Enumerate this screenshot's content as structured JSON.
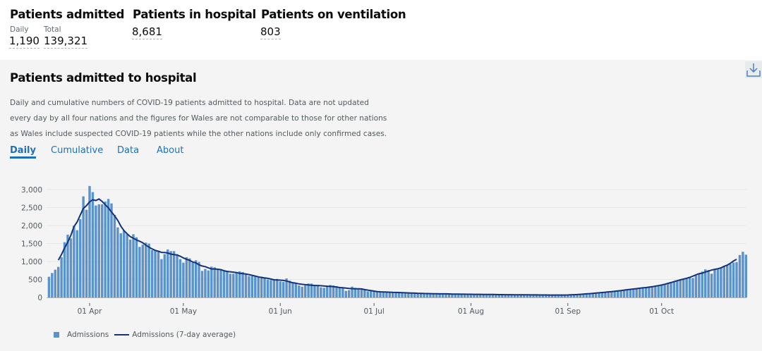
{
  "headline": {
    "admitted": {
      "title": "Patients admitted",
      "daily_label": "Daily",
      "daily_value": "1,190",
      "total_label": "Total",
      "total_value": "139,321"
    },
    "in_hospital": {
      "title": "Patients in hospital",
      "value": "8,681"
    },
    "ventilation": {
      "title": "Patients on ventilation",
      "value": "803"
    }
  },
  "card": {
    "title": "Patients admitted to hospital",
    "description": "Daily and cumulative numbers of COVID-19 patients admitted to hospital. Data are not updated every day by all four nations and the figures for Wales are not comparable to those for other nations as Wales include suspected COVID-19 patients while the other nations include only confirmed cases.",
    "tabs": [
      "Daily",
      "Cumulative",
      "Data",
      "About"
    ],
    "active_tab": "Daily",
    "download_icon": "download-icon"
  },
  "chart_data": {
    "type": "bar",
    "ylim": [
      0,
      3000
    ],
    "yticks": [
      "0",
      "500",
      "1,000",
      "1,500",
      "2,000",
      "2,500",
      "3,000"
    ],
    "xticks": [
      "01 Apr",
      "01 May",
      "01 Jun",
      "01 Jul",
      "01 Aug",
      "01 Sep",
      "01 Oct"
    ],
    "grid": "horizontal",
    "legend_position": "bottom-left",
    "colors": {
      "bars": "#5a93cc",
      "line": "#12337a"
    },
    "series": [
      {
        "name": "Admissions",
        "type": "bar"
      },
      {
        "name": "Admissions (7-day average)",
        "type": "line"
      }
    ],
    "daily_by_month": [
      {
        "month": "2020-03",
        "first_day": 19,
        "values": [
          575,
          680,
          772,
          850,
          1118,
          1537,
          1746,
          1641,
          1995,
          1870,
          2178,
          2812,
          2439
        ]
      },
      {
        "month": "2020-04",
        "first_day": 1,
        "values": [
          3100,
          2930,
          2557,
          2590,
          2590,
          2668,
          2740,
          2616,
          2296,
          1949,
          1785,
          1857,
          1759,
          1609,
          1759,
          1674,
          1406,
          1471,
          1524,
          1498,
          1314,
          1301,
          1269,
          1066,
          1203,
          1334,
          1288,
          1288,
          1203,
          1066
        ]
      },
      {
        "month": "2020-05",
        "first_day": 1,
        "values": [
          968,
          1118,
          1086,
          968,
          1033,
          987,
          739,
          791,
          752,
          857,
          837,
          791,
          772,
          745,
          739,
          660,
          660,
          693,
          726,
          706,
          660,
          595,
          595,
          595,
          575,
          582,
          562,
          497,
          484,
          497,
          516
        ]
      },
      {
        "month": "2020-06",
        "first_day": 1,
        "values": [
          445,
          431,
          530,
          464,
          418,
          399,
          333,
          300,
          333,
          386,
          386,
          353,
          333,
          281,
          268,
          314,
          346,
          333,
          314,
          288,
          255,
          183,
          203,
          300,
          268,
          255,
          248,
          235,
          170,
          183
        ]
      },
      {
        "month": "2020-07",
        "first_day": 1,
        "values": [
          170,
          165,
          160,
          150,
          140,
          135,
          150,
          145,
          140,
          135,
          130,
          120,
          115,
          125,
          120,
          115,
          110,
          105,
          100,
          100,
          110,
          105,
          100,
          95,
          95,
          90,
          100,
          95,
          90,
          90,
          85
        ]
      },
      {
        "month": "2020-08",
        "first_day": 1,
        "values": [
          85,
          80,
          95,
          90,
          85,
          85,
          80,
          80,
          75,
          85,
          80,
          80,
          75,
          75,
          70,
          70,
          80,
          75,
          75,
          70,
          70,
          65,
          65,
          75,
          70,
          70,
          65,
          65,
          60,
          60,
          70
        ]
      },
      {
        "month": "2020-09",
        "first_day": 1,
        "values": [
          75,
          70,
          70,
          80,
          85,
          85,
          100,
          110,
          115,
          120,
          130,
          140,
          145,
          150,
          160,
          170,
          185,
          190,
          200,
          215,
          230,
          240,
          245,
          255,
          265,
          270,
          290,
          300,
          300,
          320
        ]
      },
      {
        "month": "2020-10",
        "first_day": 1,
        "values": [
          340,
          370,
          380,
          400,
          450,
          470,
          490,
          520,
          540,
          560,
          540,
          610,
          650,
          720,
          780,
          760,
          660,
          770,
          800,
          830,
          870,
          900,
          930,
          970,
          980,
          1180,
          1270,
          1190
        ]
      }
    ]
  }
}
